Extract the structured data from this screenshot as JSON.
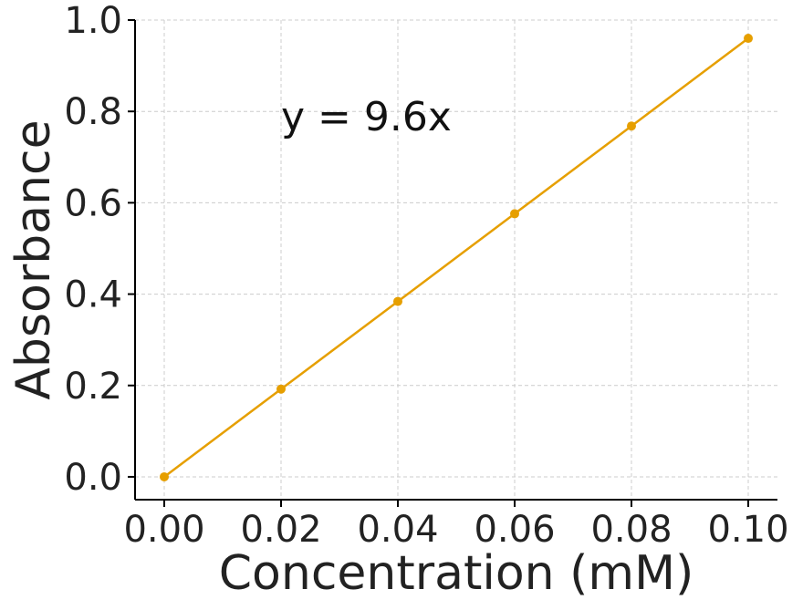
{
  "chart_data": {
    "type": "line",
    "xlabel": "Concentration (mM)",
    "ylabel": "Absorbance",
    "xlim": [
      -0.005,
      0.105
    ],
    "ylim": [
      -0.05,
      1.0
    ],
    "xticks": [
      0.0,
      0.02,
      0.04,
      0.06,
      0.08,
      0.1
    ],
    "xtick_labels": [
      "0.00",
      "0.02",
      "0.04",
      "0.06",
      "0.08",
      "0.10"
    ],
    "yticks": [
      0.0,
      0.2,
      0.4,
      0.6,
      0.8,
      1.0
    ],
    "ytick_labels": [
      "0.0",
      "0.2",
      "0.4",
      "0.6",
      "0.8",
      "1.0"
    ],
    "grid": true,
    "series": [
      {
        "color": "#E69F00",
        "markers": true,
        "x": [
          0.0,
          0.02,
          0.04,
          0.06,
          0.08,
          0.1
        ],
        "y": [
          0.0,
          0.192,
          0.384,
          0.576,
          0.768,
          0.96
        ]
      }
    ],
    "annotations": [
      {
        "text": "y = 9.6x",
        "x": 0.02,
        "y": 0.79
      }
    ]
  }
}
